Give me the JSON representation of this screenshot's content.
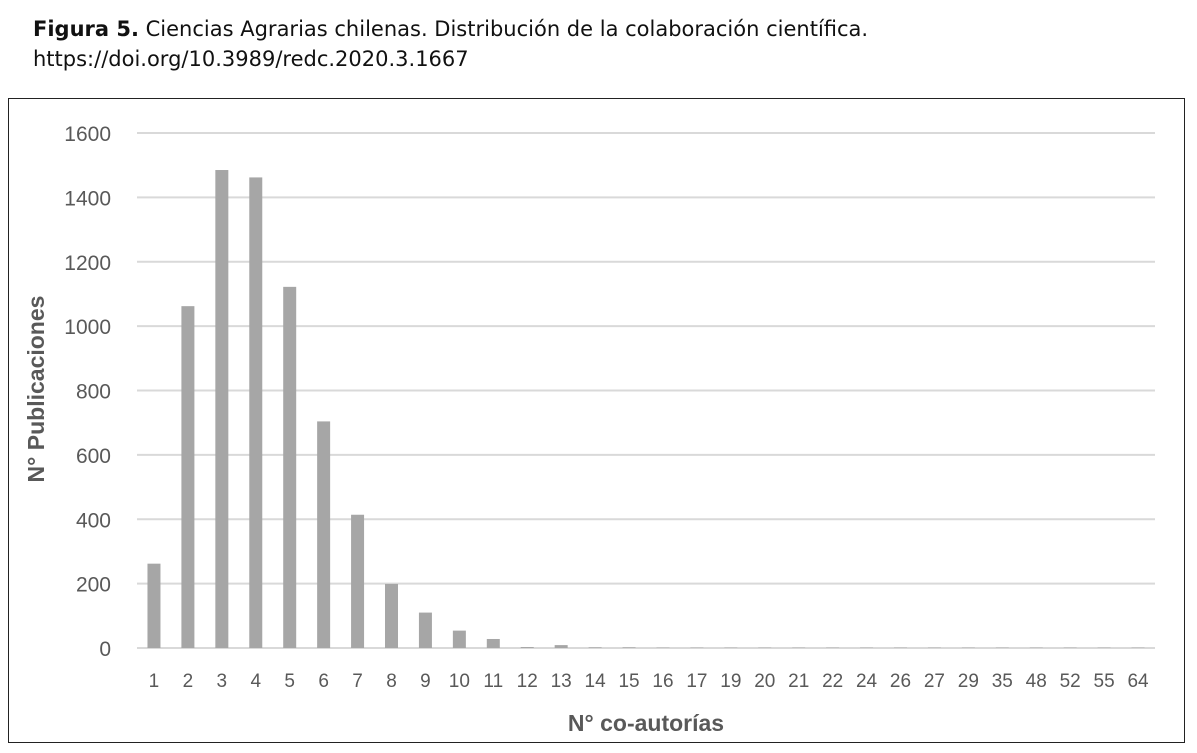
{
  "caption": {
    "label": "Figura 5.",
    "text": " Ciencias Agrarias chilenas. Distribución de la colaboración científica.",
    "doi": "https://doi.org/10.3989/redc.2020.3.1667"
  },
  "chart_data": {
    "type": "bar",
    "title": "",
    "xlabel": "N° co-autorías",
    "ylabel": "N° Publicaciones",
    "ylim": [
      0,
      1600
    ],
    "yticks": [
      0,
      200,
      400,
      600,
      800,
      1000,
      1200,
      1400,
      1600
    ],
    "grid": true,
    "legend": "none",
    "bar_color": "#a6a6a6",
    "categories": [
      "1",
      "2",
      "3",
      "4",
      "5",
      "6",
      "7",
      "8",
      "9",
      "10",
      "11",
      "12",
      "13",
      "14",
      "15",
      "16",
      "17",
      "19",
      "20",
      "21",
      "22",
      "24",
      "26",
      "27",
      "29",
      "35",
      "48",
      "52",
      "55",
      "64"
    ],
    "values": [
      262,
      1062,
      1485,
      1462,
      1122,
      704,
      414,
      199,
      110,
      54,
      28,
      3,
      9,
      2,
      2,
      1,
      1,
      1,
      1,
      1,
      1,
      1,
      1,
      1,
      1,
      1,
      1,
      1,
      1,
      1
    ]
  }
}
